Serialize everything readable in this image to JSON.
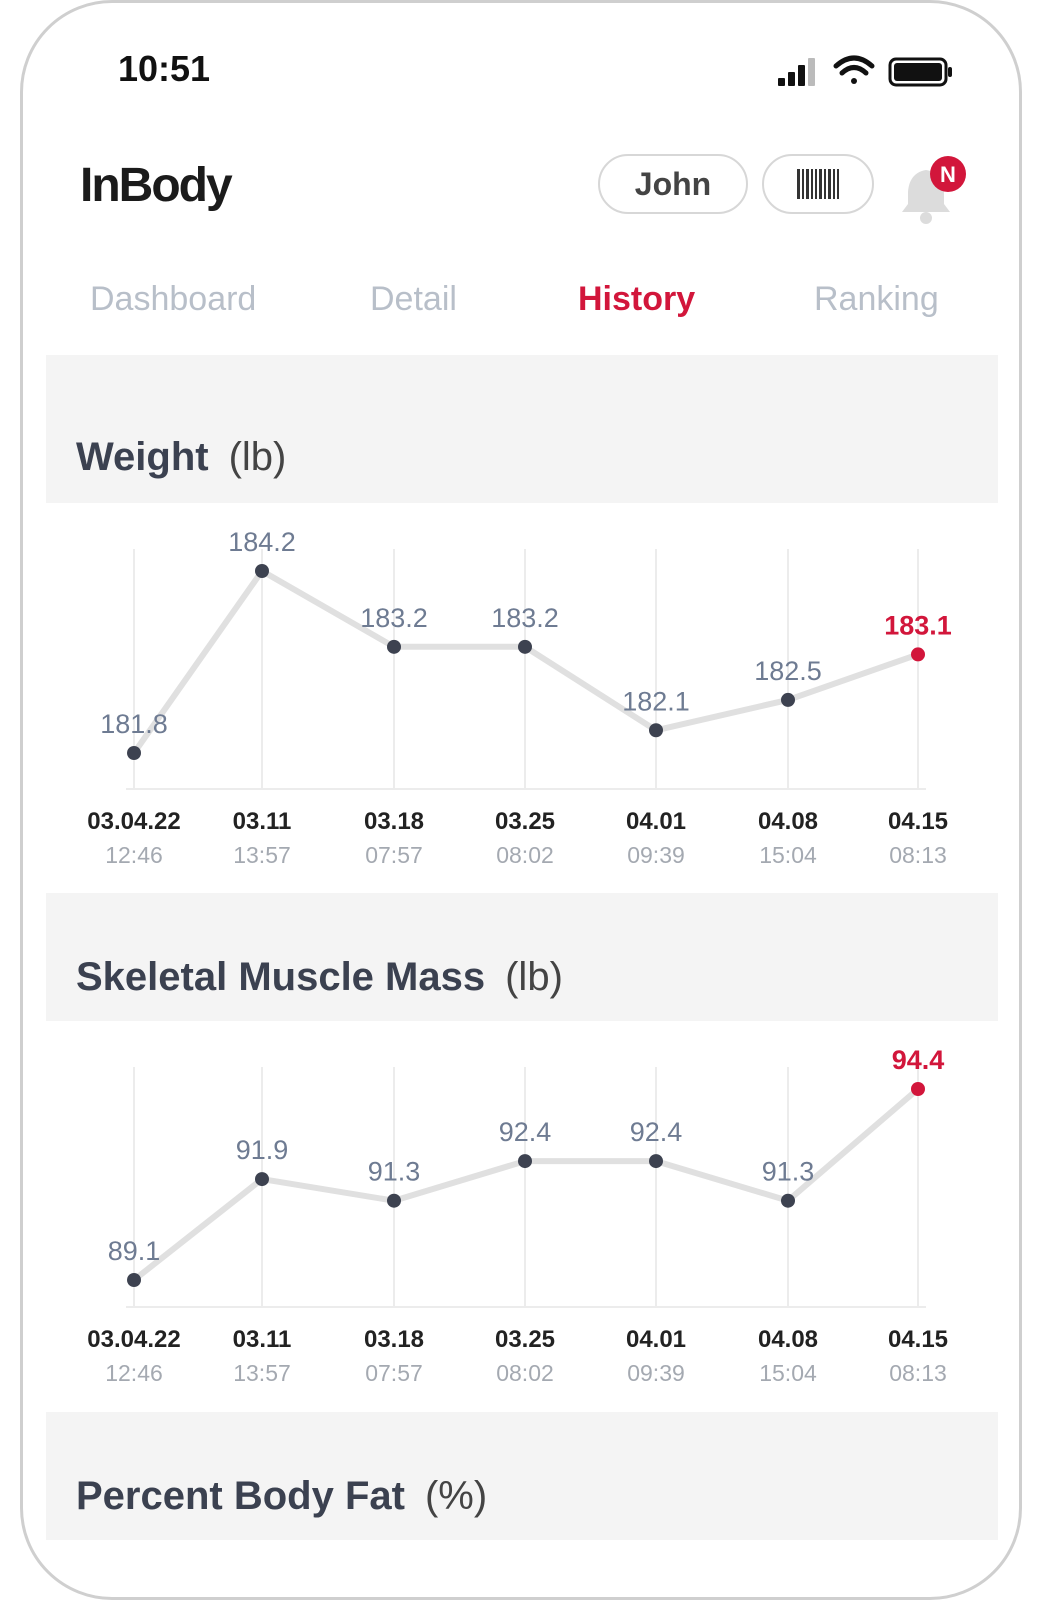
{
  "status_bar": {
    "time": "10:51"
  },
  "header": {
    "logo": "InBody",
    "user": "John",
    "notification_badge": "N"
  },
  "tabs": [
    {
      "label": "Dashboard",
      "active": false
    },
    {
      "label": "Detail",
      "active": false
    },
    {
      "label": "History",
      "active": true
    },
    {
      "label": "Ranking",
      "active": false
    }
  ],
  "colors": {
    "accent": "#d2163b",
    "point": "#3d4250",
    "line": "#e0e0e0",
    "value_text": "#6e7b92"
  },
  "sections": [
    {
      "title": "Weight",
      "unit": "(lb)"
    },
    {
      "title": "Skeletal Muscle Mass",
      "unit": "(lb)"
    },
    {
      "title": "Percent Body Fat",
      "unit": "(%)"
    }
  ],
  "chart_data": [
    {
      "type": "line",
      "title": "Weight",
      "unit": "lb",
      "categories": [
        "03.04.22",
        "03.11",
        "03.18",
        "03.25",
        "04.01",
        "04.08",
        "04.15"
      ],
      "times": [
        "12:46",
        "13:57",
        "07:57",
        "08:02",
        "09:39",
        "15:04",
        "08:13"
      ],
      "values": [
        181.8,
        184.2,
        183.2,
        183.2,
        182.1,
        182.5,
        183.1
      ],
      "value_labels": [
        "181.8",
        "184.2",
        "183.2",
        "183.2",
        "182.1",
        "182.5",
        "183.1"
      ],
      "highlight_index": 6
    },
    {
      "type": "line",
      "title": "Skeletal Muscle Mass",
      "unit": "lb",
      "categories": [
        "03.04.22",
        "03.11",
        "03.18",
        "03.25",
        "04.01",
        "04.08",
        "04.15"
      ],
      "times": [
        "12:46",
        "13:57",
        "07:57",
        "08:02",
        "09:39",
        "15:04",
        "08:13"
      ],
      "values": [
        89.1,
        91.9,
        91.3,
        92.4,
        92.4,
        91.3,
        94.4
      ],
      "value_labels": [
        "89.1",
        "91.9",
        "91.3",
        "92.4",
        "92.4",
        "91.3",
        "94.4"
      ],
      "highlight_index": 6
    }
  ]
}
